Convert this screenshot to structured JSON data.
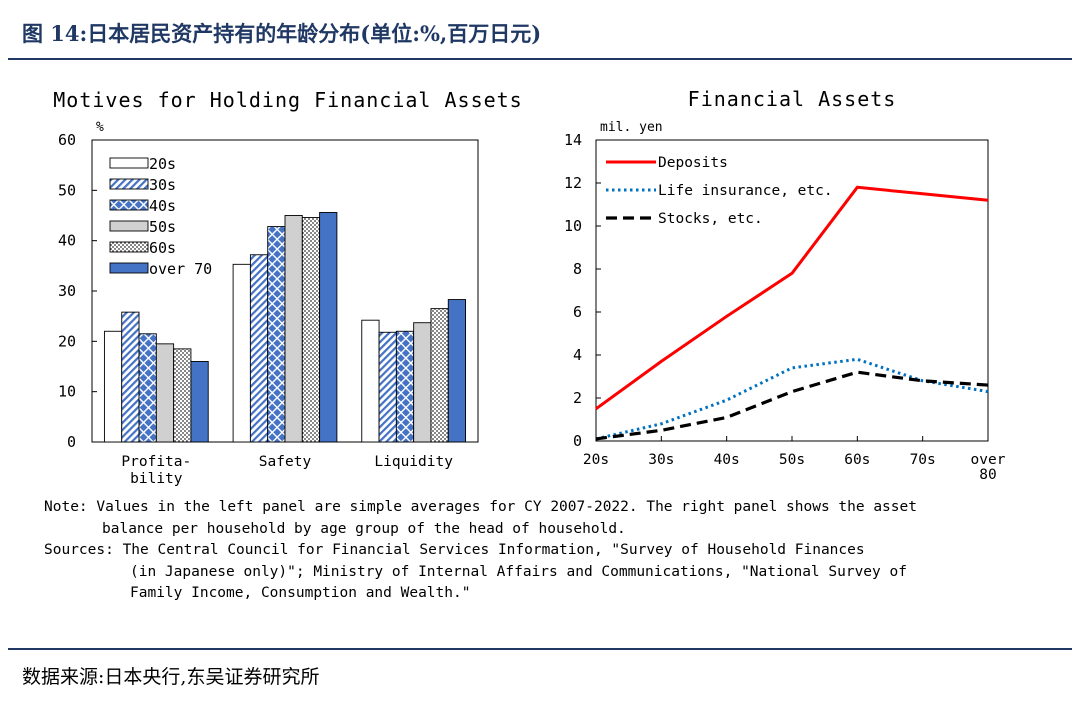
{
  "figure_title": "图 14:日本居民资产持有的年龄分布(单位:%,百万日元)",
  "source": "数据来源:日本央行,东吴证券研究所",
  "notes": [
    "Note: Values in the left panel are simple averages for CY 2007-2022. The right panel shows the asset",
    "balance per household by age group of the head of household.",
    "Sources: The Central Council for Financial Services Information, \"Survey of Household Finances",
    "(in Japanese only)\"; Ministry of Internal Affairs and Communications, \"National Survey of",
    "Family Income, Consumption and Wealth.\""
  ],
  "colors": {
    "accent": "#1f3864",
    "blue": "#4472c4",
    "red": "#ff0000",
    "dotted": "#0070c0",
    "black": "#000000"
  },
  "chart_data": [
    {
      "type": "bar",
      "title": "Motives for Holding Financial Assets",
      "ylabel": "%",
      "ylim": [
        0,
        60
      ],
      "yticks": [
        0,
        10,
        20,
        30,
        40,
        50,
        60
      ],
      "categories": [
        [
          "Profita-",
          "bility"
        ],
        [
          "Safety"
        ],
        [
          "Liquidity"
        ]
      ],
      "legend_position": "top-left",
      "series": [
        {
          "name": "20s",
          "pattern": "white",
          "values": [
            22.0,
            35.3,
            24.2
          ]
        },
        {
          "name": "30s",
          "pattern": "diagonal",
          "values": [
            25.8,
            37.2,
            21.8
          ]
        },
        {
          "name": "40s",
          "pattern": "crosshatch",
          "values": [
            21.5,
            42.8,
            22.0
          ]
        },
        {
          "name": "50s",
          "pattern": "gray",
          "values": [
            19.5,
            45.0,
            23.7
          ]
        },
        {
          "name": "60s",
          "pattern": "dots",
          "values": [
            18.5,
            44.6,
            26.5
          ]
        },
        {
          "name": "over 70",
          "pattern": "blue",
          "values": [
            16.0,
            45.6,
            28.3
          ]
        }
      ]
    },
    {
      "type": "line",
      "title": "Financial Assets",
      "ylabel": "mil. yen",
      "ylim": [
        0,
        14
      ],
      "yticks": [
        0,
        2,
        4,
        6,
        8,
        10,
        12,
        14
      ],
      "categories": [
        [
          "20s"
        ],
        [
          "30s"
        ],
        [
          "40s"
        ],
        [
          "50s"
        ],
        [
          "60s"
        ],
        [
          "70s"
        ],
        [
          "over",
          "80"
        ]
      ],
      "legend_position": "top-left",
      "series": [
        {
          "name": "Deposits",
          "style": "solid",
          "color": "#ff0000",
          "values": [
            1.5,
            3.7,
            5.8,
            7.8,
            11.8,
            11.5,
            11.2
          ]
        },
        {
          "name": "Life insurance, etc.",
          "style": "dotted",
          "color": "#0070c0",
          "values": [
            0.1,
            0.8,
            1.9,
            3.4,
            3.8,
            2.8,
            2.3
          ]
        },
        {
          "name": "Stocks, etc.",
          "style": "dashed",
          "color": "#000000",
          "values": [
            0.1,
            0.5,
            1.1,
            2.3,
            3.2,
            2.8,
            2.6
          ]
        }
      ]
    }
  ]
}
